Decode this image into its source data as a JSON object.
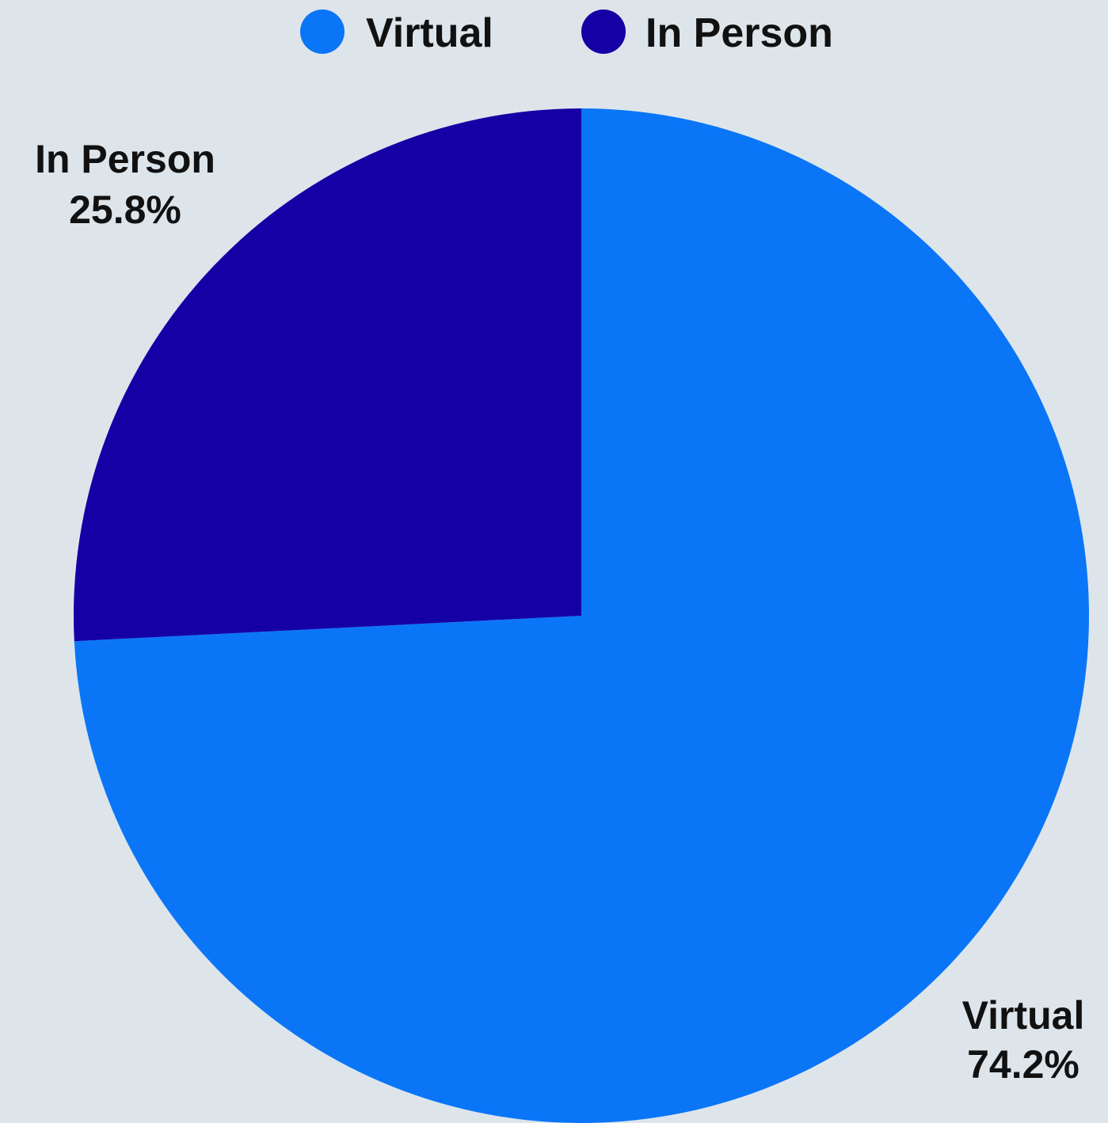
{
  "chart_data": {
    "type": "pie",
    "title": "",
    "legend_position": "top",
    "slices": [
      {
        "label": "Virtual",
        "value": 74.2,
        "value_label": "74.2%",
        "color": "#0a76f7"
      },
      {
        "label": "In Person",
        "value": 25.8,
        "value_label": "25.8%",
        "color": "#1500a6"
      }
    ]
  },
  "colors": {
    "background": "#dde5eb",
    "text": "#111111"
  }
}
